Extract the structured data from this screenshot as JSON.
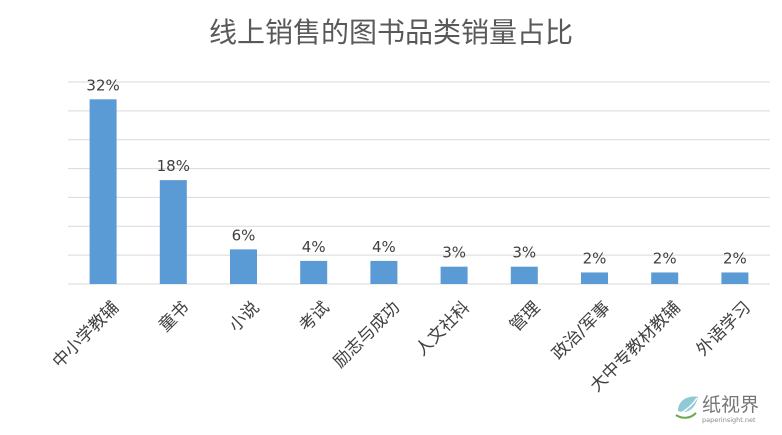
{
  "chart_data": {
    "type": "bar",
    "title": "线上销售的图书品类销量占比",
    "xlabel": "",
    "ylabel": "",
    "categories": [
      "中小学教辅",
      "童书",
      "小说",
      "考试",
      "励志与成功",
      "人文社科",
      "管理",
      "政治/军事",
      "大中专教材教辅",
      "外语学习"
    ],
    "values": [
      32,
      18,
      6,
      4,
      4,
      3,
      3,
      2,
      2,
      2
    ],
    "value_labels": [
      "32%",
      "18%",
      "6%",
      "4%",
      "4%",
      "3%",
      "3%",
      "2%",
      "2%",
      "2%"
    ],
    "ylim": [
      0,
      35
    ],
    "grid": true,
    "bar_color": "#5b9bd5"
  },
  "watermark": {
    "text": "纸视界",
    "url": "paperinsight.net"
  }
}
